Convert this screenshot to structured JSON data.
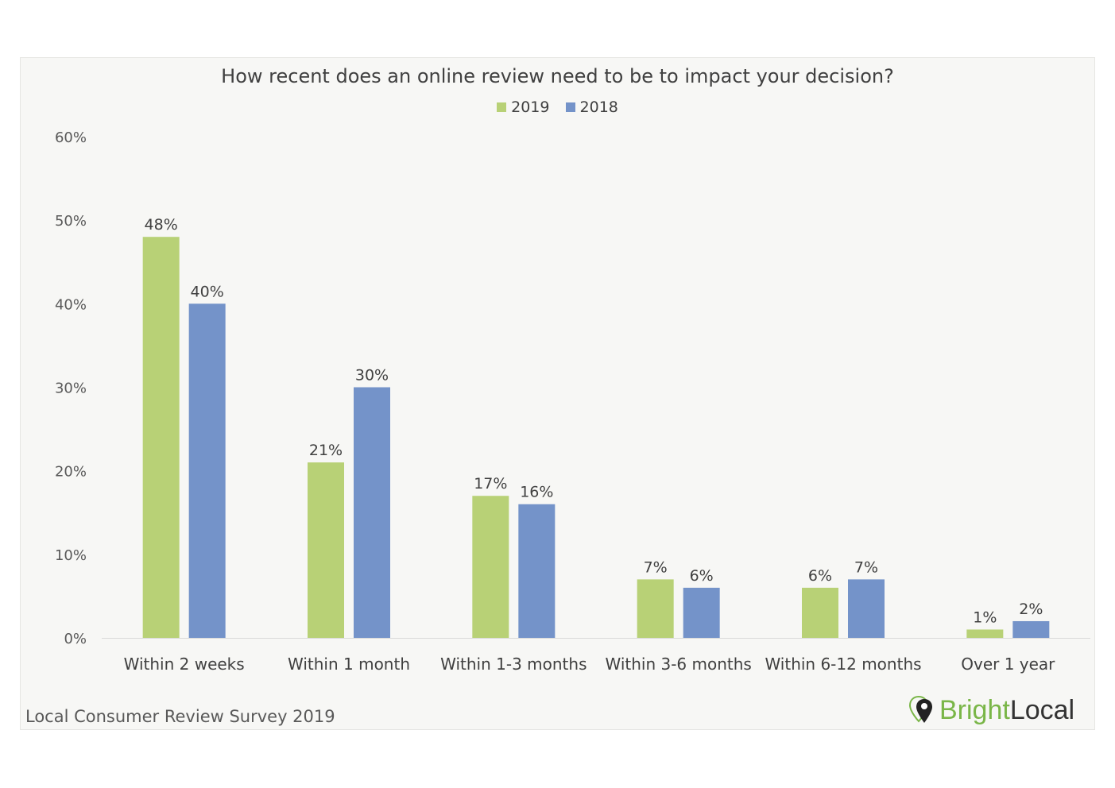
{
  "chart_data": {
    "type": "bar",
    "title": "How recent does an online review need to be to impact your decision?",
    "categories": [
      "Within 2 weeks",
      "Within 1 month",
      "Within 1-3 months",
      "Within 3-6 months",
      "Within 6-12 months",
      "Over 1 year"
    ],
    "series": [
      {
        "name": "2019",
        "values": [
          48,
          21,
          17,
          7,
          6,
          1
        ],
        "color": "#b8d176"
      },
      {
        "name": "2018",
        "values": [
          40,
          30,
          16,
          6,
          7,
          2
        ],
        "color": "#7493c9"
      }
    ],
    "ylim": [
      0,
      60
    ],
    "yticks": [
      0,
      10,
      20,
      30,
      40,
      50,
      60
    ],
    "value_suffix": "%",
    "grid": false,
    "legend_position": "top-center"
  },
  "footer": {
    "source": "Local Consumer Review Survey 2019"
  },
  "logo": {
    "part1": "Bright",
    "part2": "Local"
  }
}
